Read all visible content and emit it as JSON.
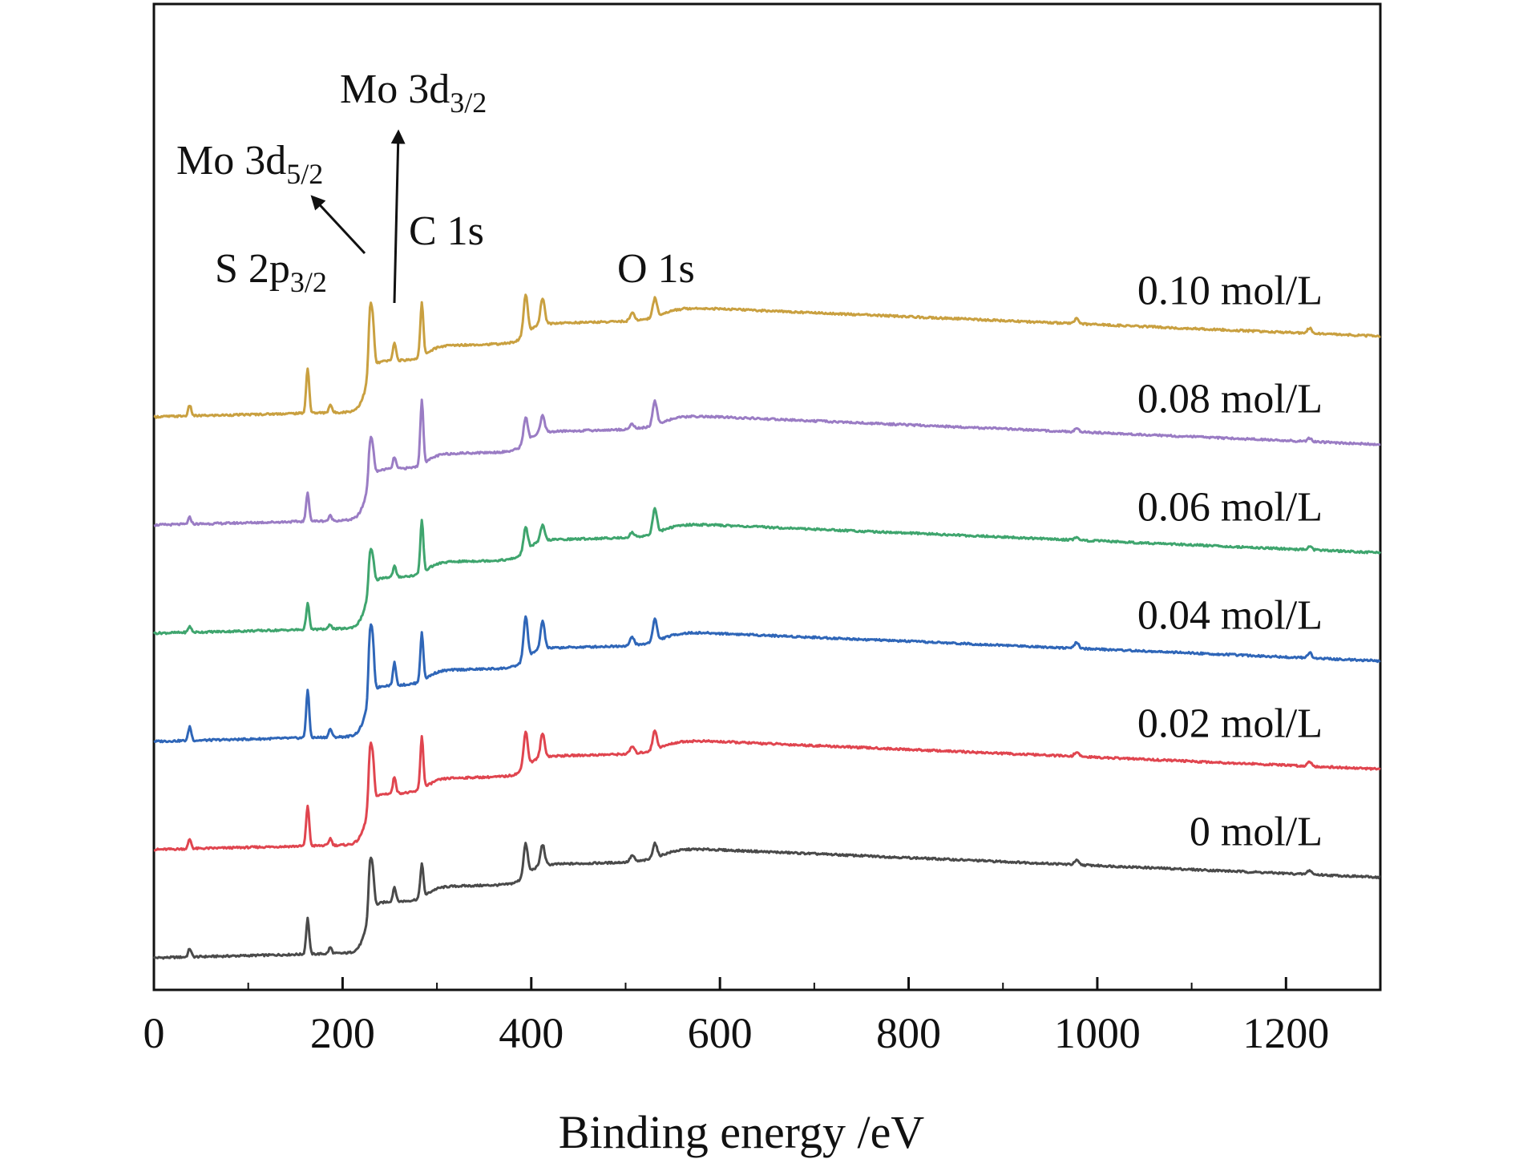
{
  "chart_data": {
    "type": "line",
    "title": "",
    "xlabel": "Binding energy /eV",
    "ylabel": "",
    "xlim": [
      0,
      1300
    ],
    "x_ticks": [
      0,
      200,
      400,
      600,
      800,
      1000,
      1200
    ],
    "x_tick_labels": [
      "0",
      "200",
      "400",
      "600",
      "800",
      "1000",
      "1200"
    ],
    "grid": false,
    "legend": "inline labels at right",
    "annotations": [
      {
        "text": "S 2p",
        "sub": "3/2",
        "x": 163
      },
      {
        "text": "Mo 3d",
        "sub": "5/2",
        "x": 229
      },
      {
        "text": "Mo 3d",
        "sub": "3/2",
        "x": 232
      },
      {
        "text": "C 1s",
        "x": 284
      },
      {
        "text": "O 1s",
        "x": 531
      }
    ],
    "series": [
      {
        "name": "0 mol/L",
        "color": "#4a4a4a",
        "offset": 0.0,
        "peak_scale": 0.75,
        "peaks": [
          [
            38,
            0.2
          ],
          [
            163,
            0.85
          ],
          [
            187,
            0.15
          ],
          [
            229,
            1.15
          ],
          [
            232,
            0.85
          ],
          [
            255,
            0.35
          ],
          [
            284,
            0.8
          ],
          [
            394,
            0.75
          ],
          [
            412,
            0.5
          ],
          [
            507,
            0.15
          ],
          [
            531,
            0.35
          ],
          [
            978,
            0.1
          ],
          [
            1225,
            0.1
          ]
        ]
      },
      {
        "name": "0.02 mol/L",
        "color": "#e0454f",
        "offset": 1.0,
        "peak_scale": 0.85,
        "peaks": [
          [
            38,
            0.2
          ],
          [
            163,
            0.85
          ],
          [
            187,
            0.15
          ],
          [
            229,
            1.1
          ],
          [
            232,
            0.85
          ],
          [
            255,
            0.35
          ],
          [
            284,
            1.1
          ],
          [
            394,
            0.75
          ],
          [
            412,
            0.5
          ],
          [
            507,
            0.15
          ],
          [
            531,
            0.4
          ],
          [
            978,
            0.1
          ],
          [
            1225,
            0.1
          ]
        ]
      },
      {
        "name": "0.04 mol/L",
        "color": "#2f66b8",
        "offset": 2.0,
        "peak_scale": 1.0,
        "peaks": [
          [
            38,
            0.25
          ],
          [
            163,
            0.85
          ],
          [
            187,
            0.15
          ],
          [
            229,
            1.1
          ],
          [
            232,
            0.85
          ],
          [
            255,
            0.4
          ],
          [
            284,
            0.85
          ],
          [
            394,
            0.75
          ],
          [
            412,
            0.5
          ],
          [
            507,
            0.15
          ],
          [
            531,
            0.4
          ],
          [
            978,
            0.1
          ],
          [
            1225,
            0.1
          ]
        ]
      },
      {
        "name": "0.06 mol/L",
        "color": "#3fa56e",
        "offset": 3.0,
        "peak_scale": 0.55,
        "peaks": [
          [
            38,
            0.2
          ],
          [
            163,
            0.85
          ],
          [
            187,
            0.15
          ],
          [
            229,
            1.1
          ],
          [
            232,
            0.8
          ],
          [
            255,
            0.35
          ],
          [
            284,
            1.7
          ],
          [
            394,
            0.75
          ],
          [
            412,
            0.5
          ],
          [
            507,
            0.15
          ],
          [
            531,
            0.8
          ],
          [
            978,
            0.1
          ],
          [
            1225,
            0.1
          ]
        ]
      },
      {
        "name": "0.08 mol/L",
        "color": "#9a7cc4",
        "offset": 4.0,
        "peak_scale": 0.6,
        "peaks": [
          [
            38,
            0.2
          ],
          [
            163,
            0.85
          ],
          [
            187,
            0.15
          ],
          [
            229,
            1.1
          ],
          [
            232,
            0.8
          ],
          [
            255,
            0.35
          ],
          [
            284,
            1.9
          ],
          [
            394,
            0.75
          ],
          [
            412,
            0.5
          ],
          [
            507,
            0.15
          ],
          [
            531,
            0.7
          ],
          [
            978,
            0.1
          ],
          [
            1225,
            0.1
          ]
        ]
      },
      {
        "name": "0.10 mol/L",
        "color": "#c9a040",
        "offset": 5.0,
        "peak_scale": 0.95,
        "peaks": [
          [
            38,
            0.2
          ],
          [
            163,
            0.85
          ],
          [
            187,
            0.15
          ],
          [
            229,
            1.1
          ],
          [
            232,
            0.85
          ],
          [
            255,
            0.35
          ],
          [
            284,
            1.0
          ],
          [
            394,
            0.75
          ],
          [
            412,
            0.5
          ],
          [
            507,
            0.15
          ],
          [
            531,
            0.35
          ],
          [
            978,
            0.1
          ],
          [
            1225,
            0.1
          ]
        ]
      }
    ]
  }
}
